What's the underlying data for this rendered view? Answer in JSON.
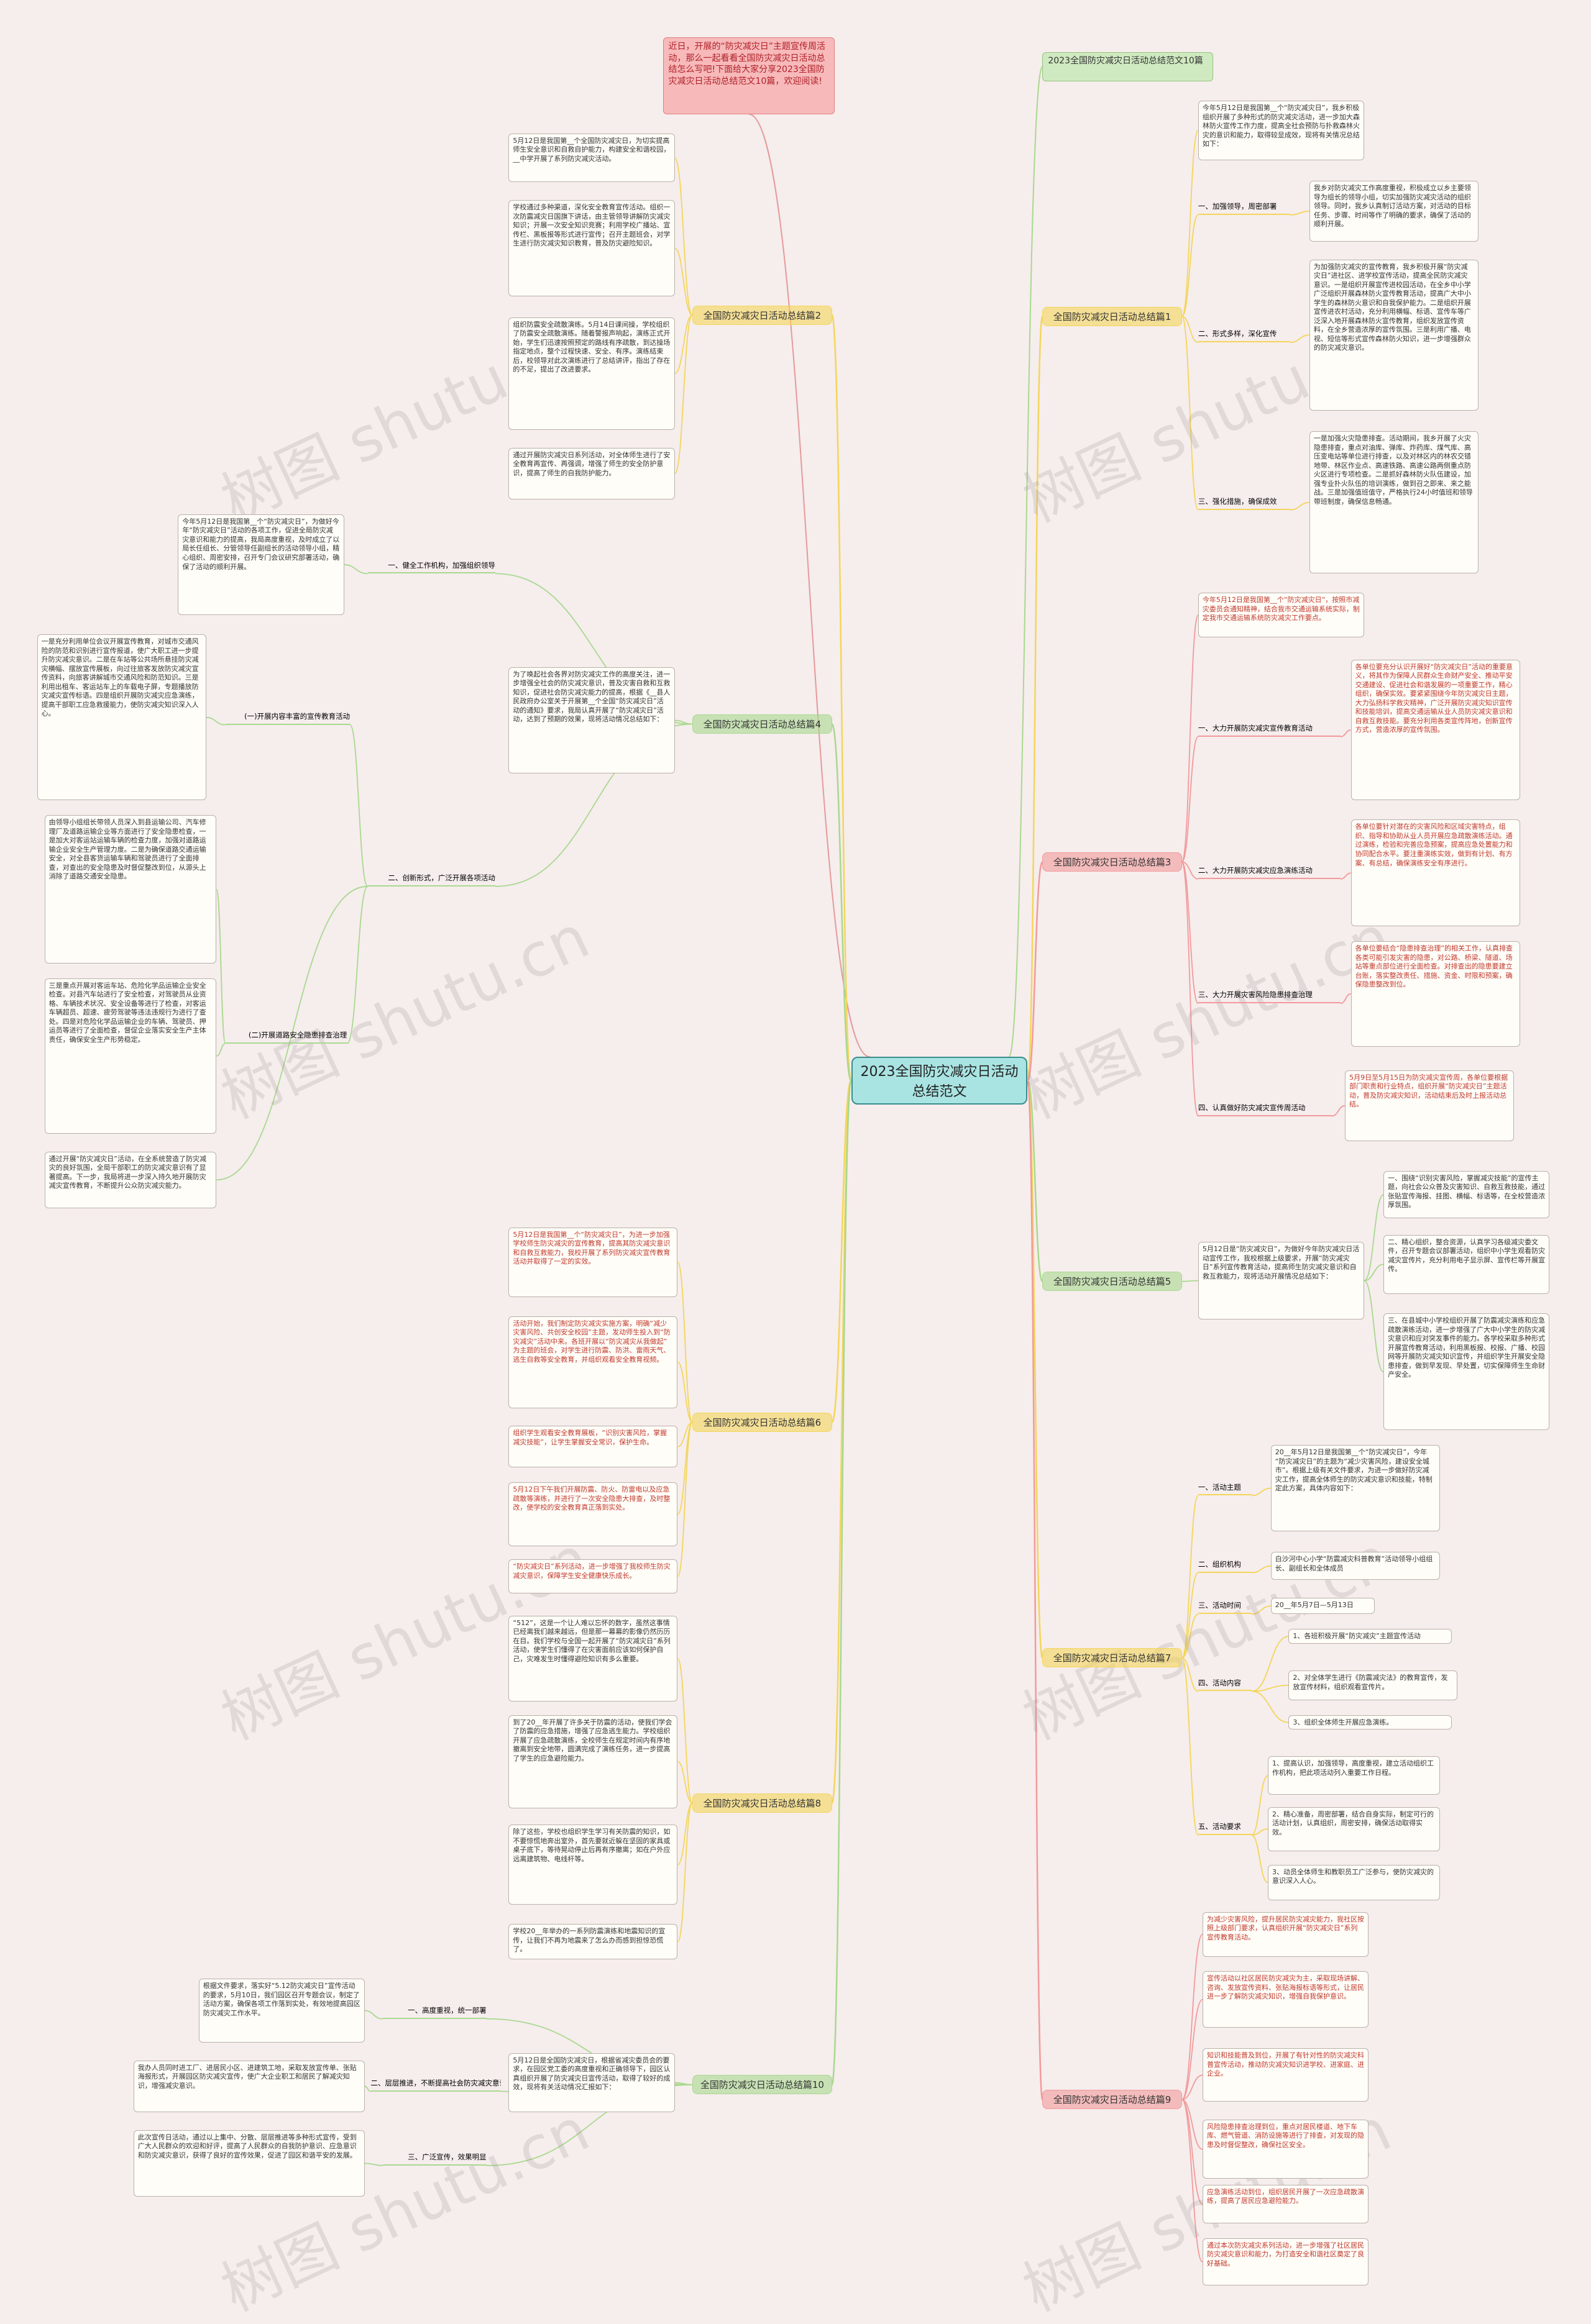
{
  "root": "2023全国防灾减灾日活动总结范文",
  "intro": "近日，开展的“防灾减灾日”主题宣传周活动，那么一起看看全国防灾减灾日活动总结怎么写吧!下面给大家分享2023全国防灾减灾日活动总结范文10篇，欢迎阅读!",
  "title_note": "2023全国防灾减灾日活动总结范文10篇",
  "watermark": "树图 shutu.cn",
  "branches": [
    {
      "text": "全国防灾减灾日活动总结篇1",
      "color": "#f3d65a",
      "text_color": "#333333",
      "children": [
        {
          "text": "今年5月12日是我国第__个“防灾减灾日”，我乡积极组织开展了多种形式的防灾减灾活动，进一步加大森林防火宣传工作力度，提高全社会预防与扑救森林火灾的意识和能力，取得较显成效，现将有关情况总结如下："
        },
        {
          "text": "一、加强领导，周密部署",
          "children": [
            {
              "text": "我乡对防灾减灾工作高度重视，积极成立以乡主要领导为组长的领导小组，切实加强防灾减灾活动的组织领导。同时，我乡认真制订活动方案，对活动的目标任务、步骤、时间等作了明确的要求，确保了活动的顺利开展。"
            }
          ]
        },
        {
          "text": "二、形式多样，深化宣传",
          "children": [
            {
              "text": "为加强防灾减灾的宣传教育，我乡积极开展“防灾减灾日”进社区、进学校宣传活动，提高全民防灾减灾意识。一是组织开展宣传进校园活动，在全乡中小学广泛组织开展森林防火宣传教育活动，提高广大中小学生的森林防火意识和自我保护能力。二是组织开展宣传进农村活动，充分利用横幅、标语、宣传车等广泛深入地开展森林防火宣传教育，组织发放宣传资料，在全乡营造浓厚的宣传氛围。三是利用广播、电视、短信等形式宣传森林防火知识，进一步增强群众的防灾减灾意识。"
            }
          ]
        },
        {
          "text": "三、强化措施，确保成效",
          "children": [
            {
              "text": "一是加强火灾隐患排查。活动期间，我乡开展了火灾隐患排查，重点对油库、弹库、炸药库、煤气库、高压变电站等单位进行排查，以及对林区内的林农交错地带、林区作业点、高速铁路、高速公路两侧重点防火区进行专项检查。二是抓好森林防火队伍建设，加强专业扑火队伍的培训演练，做到召之即来、来之能战。三是加强值班值守，严格执行24小时值班和领导带班制度，确保信息畅通。"
            }
          ]
        }
      ]
    },
    {
      "text": "全国防灾减灾日活动总结篇3",
      "color": "#f29a9a",
      "text_color": "#c0392b",
      "children": [
        {
          "text": "今年5月12日是我国第__个“防灾减灾日”，按照市减灾委员会通知精神，结合我市交通运输系统实际，制定我市交通运输系统防灾减灾工作要点。"
        },
        {
          "text": "一、大力开展防灾减灾宣传教育活动",
          "children": [
            {
              "text": "各单位要充分认识开展好“防灾减灾日”活动的重要意义，将其作为保障人民群众生命财产安全、推动平安交通建设、促进社会和谐发展的一项重要工作，精心组织，确保实效。要紧紧围绕今年防灾减灾日主题，大力弘扬科学救灾精神，广泛开展防灾减灾知识宣传和技能培训，提高交通运输从业人员防灾减灾意识和自救互救技能。要充分利用各类宣传阵地，创新宣传方式，营造浓厚的宣传氛围。"
            }
          ]
        },
        {
          "text": "二、大力开展防灾减灾应急演练活动",
          "children": [
            {
              "text": "各单位要针对潜在的灾害风险和区域灾害特点，组织、指导和协助从业人员开展应急疏散演练活动。通过演练，检验和完善应急预案，提高应急处置能力和协同配合水平。要注重演练实效，做到有计划、有方案、有总结，确保演练安全有序进行。"
            }
          ]
        },
        {
          "text": "三、大力开展灾害风险隐患排查治理",
          "children": [
            {
              "text": "各单位要结合“隐患排查治理”的相关工作，认真排查各类可能引发灾害的隐患，对公路、桥梁、隧道、场站等重点部位进行全面检查。对排查出的隐患要建立台账，落实整改责任、措施、资金、时限和预案，确保隐患整改到位。"
            }
          ]
        },
        {
          "text": "四、认真做好防灾减灾宣传周活动",
          "children": [
            {
              "text": "5月9日至5月15日为防灾减灾宣传周，各单位要根据部门职责和行业特点，组织开展“防灾减灾日”主题活动，普及防灾减灾知识，活动结束后及时上报活动总结。"
            }
          ]
        }
      ]
    },
    {
      "text": "全国防灾减灾日活动总结篇5",
      "color": "#a8d98e",
      "text_color": "#333333",
      "children": [
        {
          "text": "5月12日是“防灾减灾日”，为做好今年防灾减灾日活动宣传工作，我校根据上级要求，开展“防灾减灾日”系列宣传教育活动，提高师生防灾减灾意识和自救互救能力，现将活动开展情况总结如下：",
          "children": [
            {
              "text": "一、围绕“识别灾害风险，掌握减灾技能”的宣传主题，向社会公众普及灾害知识、自救互救技能，通过张贴宣传海报、挂图、横幅、标语等，在全校营造浓厚氛围。"
            },
            {
              "text": "二、精心组织，整合资源，认真学习各级减灾委文件，召开专题会议部署活动，组织中小学生观看防灾减灾宣传片，充分利用电子显示屏、宣传栏等开展宣传。"
            },
            {
              "text": "三、在县城中小学校组织开展了防震减灾演练和应急疏散演练活动，进一步增强了广大中小学生的防灾减灾意识和应对突发事件的能力。各学校采取多种形式开展宣传教育活动，利用黑板报、校报、广播、校园网等开展防灾减灾知识宣传，并组织学生开展安全隐患排查，做到早发现、早处置，切实保障师生生命财产安全。"
            }
          ]
        }
      ]
    },
    {
      "text": "全国防灾减灾日活动总结篇7",
      "color": "#f3d65a",
      "text_color": "#333333",
      "children": [
        {
          "text": "一、活动主题",
          "children": [
            {
              "text": "20__年5月12日是我国第__个“防灾减灾日”，今年“防灾减灾日”的主题为“减少灾害风险，建设安全城市”。根据上级有关文件要求，为进一步做好防灾减灾工作，提高全体师生的防灾减灾意识和技能，特制定此方案，具体内容如下："
            }
          ]
        },
        {
          "text": "二、组织机构",
          "children": [
            {
              "text": "白沙河中心小学“防震减灾科普教育”活动领导小组组长、副组长和全体成员"
            }
          ]
        },
        {
          "text": "三、活动时间",
          "children": [
            {
              "text": "20__年5月7日—5月13日"
            }
          ]
        },
        {
          "text": "四、活动内容",
          "children": [
            {
              "text": "1、各班积极开展“防灾减灾”主题宣传活动"
            },
            {
              "text": "2、对全体学生进行《防震减灾法》的教育宣传，发放宣传材料，组织观看宣传片。"
            },
            {
              "text": "3、组织全体师生开展应急演练。"
            }
          ]
        },
        {
          "text": "五、活动要求",
          "children": [
            {
              "text": "1、提高认识，加强领导，高度重视，建立活动组织工作机构，把此项活动列入重要工作日程。"
            },
            {
              "text": "2、精心准备，周密部署，结合自身实际，制定可行的活动计划，认真组织，周密安排，确保活动取得实效。"
            },
            {
              "text": "3、动员全体师生和教职员工广泛参与，使防灾减灾的意识深入人心。"
            }
          ]
        }
      ]
    },
    {
      "text": "全国防灾减灾日活动总结篇9",
      "color": "#f29a9a",
      "text_color": "#c0392b",
      "children": [
        {
          "text": "为减少灾害风险，提升居民防灾减灾能力，我社区按照上级部门要求，认真组织开展“防灾减灾日”系列宣传教育活动。"
        },
        {
          "text": "宣传活动以社区居民防灾减灾为主，采取现场讲解、咨询、发放宣传资料、张贴海报标语等形式，让居民进一步了解防灾减灾知识，增强自我保护意识。"
        },
        {
          "text": "知识和技能普及到位，开展了有针对性的防灾减灾科普宣传活动，推动防灾减灾知识进学校、进家庭、进企业。"
        },
        {
          "text": "风险隐患排查治理到位，重点对居民楼道、地下车库、燃气管道、消防设施等进行了排查，对发现的隐患及时督促整改，确保社区安全。"
        },
        {
          "text": "应急演练活动到位，组织居民开展了一次应急疏散演练，提高了居民应急避险能力。"
        },
        {
          "text": "通过本次防灾减灾系列活动，进一步增强了社区居民防灾减灾意识和能力，为打造安全和谐社区奠定了良好基础。"
        }
      ]
    },
    {
      "text": "全国防灾减灾日活动总结篇2",
      "color": "#f3d65a",
      "text_color": "#333333",
      "children": [
        {
          "text": "5月12日是我国第__个全国防灾减灾日，为切实提高师生安全意识和自救自护能力，构建安全和谐校园，__中学开展了系列防灾减灾活动。"
        },
        {
          "text": "学校通过多种渠道，深化安全教育宣传活动。组织一次防震减灾日国旗下讲话，由主管领导讲解防灾减灾知识；开展一次安全知识竞赛；利用学校广播站、宣传栏、黑板报等形式进行宣传；召开主题班会，对学生进行防灾减灾知识教育，普及防灾避险知识。"
        },
        {
          "text": "组织防震安全疏散演练。5月14日课间操，学校组织了防震安全疏散演练。随着警报声响起，演练正式开始，学生们迅速按照预定的路线有序疏散，到达操场指定地点，整个过程快速、安全、有序。演练结束后，校领导对此次演练进行了总结讲评，指出了存在的不足，提出了改进要求。"
        },
        {
          "text": "通过开展防灾减灾日系列活动，对全体师生进行了安全教育再宣传、再强调，增强了师生的安全防护意识，提高了师生的自我防护能力。"
        }
      ]
    },
    {
      "text": "全国防灾减灾日活动总结篇4",
      "color": "#a8d98e",
      "text_color": "#333333",
      "children": [
        {
          "text": "为了唤起社会各界对防灾减灾工作的高度关注，进一步增强全社会的防灾减灾意识，普及灾害自救和互救知识，促进社会防灾减灾能力的提高，根据《__县人民政府办公室关于开展第__个全国“防灾减灾日”活动的通知》要求，我局认真开展了“防灾减灾日”活动，达到了预期的效果，现将活动情况总结如下："
        },
        {
          "text": "一、健全工作机构，加强组织领导",
          "children": [
            {
              "text": "今年5月12日是我国第__个“防灾减灾日”，为做好今年“防灾减灾日”活动的各项工作，促进全局防灾减灾意识和能力的提高，我局高度重视，及时成立了以局长任组长、分管领导任副组长的活动领导小组，精心组织、周密安排，召开专门会议研究部署活动，确保了活动的顺利开展。"
            }
          ]
        },
        {
          "text": "二、创新形式，广泛开展各项活动",
          "children": [
            {
              "text": "(一)开展内容丰富的宣传教育活动",
              "children": [
                {
                  "text": "一是充分利用单位会议开展宣传教育，对城市交通风险的防范和识别进行宣传报道，使广大职工进一步提升防灾减灾意识。二是在车站等公共场所悬挂防灾减灾横幅、摆放宣传展板，向过往旅客发放防灾减灾宣传资料，向旅客讲解城市交通风险和防范知识。三是利用出租车、客运站车上的车载电子屏，专题播放防灾减灾宣传标语。四是组织开展防灾减灾应急演练，提高干部职工应急救援能力，使防灾减灾知识深入人心。"
                }
              ]
            },
            {
              "text": "(二)开展道路安全隐患排查治理",
              "children": [
                {
                  "text": "由领导小组组长带领人员深入到县运输公司、汽车修理厂及道路运输企业等方面进行了安全隐患检查，一是加大对客运站运输车辆的检查力度，加强对道路运输企业安全生产管理力度。二是为确保道路交通运输安全，对全县客货运输车辆和驾驶员进行了全面排查，对查出的安全隐患及时督促整改到位，从源头上消除了道路交通安全隐患。"
                },
                {
                  "text": "三是重点开展对客运车站、危险化学品运输企业安全检查。对县汽车站进行了安全检查，对驾驶员从业资格、车辆技术状况、安全设备等进行了检查，对客运车辆超员、超速、疲劳驾驶等违法违规行为进行了查处。四是对危险化学品运输企业的车辆、驾驶员、押运员等进行了全面检查，督促企业落实安全生产主体责任，确保安全生产形势稳定。"
                }
              ]
            },
            {
              "text": "通过开展“防灾减灾日”活动，在全系统营造了防灾减灾的良好氛围，全局干部职工的防灾减灾意识有了显著提高。下一步，我局将进一步深入持久地开展防灾减灾宣传教育，不断提升公众防灾减灾能力。"
            }
          ]
        }
      ]
    },
    {
      "text": "全国防灾减灾日活动总结篇6",
      "color": "#f3d65a",
      "text_color": "#c0392b",
      "children": [
        {
          "text": "5月12日是我国第__个“防灾减灾日”，为进一步加强学校师生防灾减灾的宣传教育，提高其防灾减灾意识和自救互救能力，我校开展了系列防灾减灾宣传教育活动并取得了一定的实效。"
        },
        {
          "text": "活动开始，我们制定防灾减灾实施方案，明确“减少灾害风险、共创安全校园”主题，发动师生投入到“防灾减灾”活动中来。各班开展以“防灾减灾从我做起”为主题的班会，对学生进行防震、防洪、雷雨天气、逃生自救等安全教育，并组织观看安全教育视频。"
        },
        {
          "text": "组织学生观看安全教育展板，“识别灾害风险，掌握减灾技能”，让学生掌握安全常识，保护生命。"
        },
        {
          "text": "5月12日下午我们开展防震、防火、防雷电以及应急疏散等演练，并进行了一次安全隐患大排查，及时整改，使学校的安全教育真正落到实处。"
        },
        {
          "text": "“防灾减灾日”系列活动，进一步增强了我校师生防灾减灾意识，保障学生安全健康快乐成长。"
        }
      ]
    },
    {
      "text": "全国防灾减灾日活动总结篇8",
      "color": "#f3d65a",
      "text_color": "#333333",
      "children": [
        {
          "text": "“512”，这是一个让人难以忘怀的数字，虽然这事情已经离我们越来越远，但是那一幕幕的影像仍然历历在目。我们学校与全国一起开展了“防灾减灾日”系列活动，使学生们懂得了在灾害面前应该如何保护自己，灾难发生时懂得避险知识有多么重要。"
        },
        {
          "text": "到了20__年开展了许多关于防震的活动，使我们学会了防震的应急措施，增强了应急逃生能力。学校组织开展了应急疏散演练，全校师生在规定时间内有序地撤离到安全地带，圆满完成了演练任务，进一步提高了学生的应急避险能力。"
        },
        {
          "text": "除了这些，学校也组织学生学习有关防震的知识，如不要惊慌地奔出室外，首先要就近躲在坚固的家具或桌子底下，等待晃动停止后再有序撤离；如在户外应远离建筑物、电线杆等。"
        },
        {
          "text": "学校20__年举办的一系列防震演练和地震知识的宣传，让我们不再为地震来了怎么办而感到担惊恐慌了。"
        }
      ]
    },
    {
      "text": "全国防灾减灾日活动总结篇10",
      "color": "#a8d98e",
      "text_color": "#333333",
      "children": [
        {
          "text": "一、高度重视，统一部署",
          "children": [
            {
              "text": "根据文件要求，落实好“5.12防灾减灾日”宣传活动的要求，5月10日，我们园区召开专题会议，制定了活动方案，确保各项工作落到实处，有效地提高园区防灾减灾工作水平。"
            }
          ]
        },
        {
          "text": "5月12日是全国防灾减灾日，根据省减灾委员会的要求，在园区党工委的高度重视和正确领导下，园区认真组织开展了防灾减灾日宣传活动，取得了较好的成效，现将有关活动情况汇报如下："
        },
        {
          "text": "二、层层推进，不断提高社会防灾减灾意识",
          "children": [
            {
              "text": "我办人员同时进工厂、进居民小区、进建筑工地，采取发放宣传单、张贴海报形式，开展园区防灾减灾宣传，使广大企业职工和居民了解减灾知识，增强减灾意识。"
            }
          ]
        },
        {
          "text": "三、广泛宣传，效果明显",
          "children": [
            {
              "text": "此次宣传日活动，通过以上集中、分散、层层推进等多种形式宣传，受到广大人民群众的欢迎和好评，提高了人民群众的自我防护意识、应急意识和防灾减灾意识，获得了良好的宣传效果，促进了园区和谐平安的发展。"
            }
          ]
        }
      ]
    }
  ]
}
